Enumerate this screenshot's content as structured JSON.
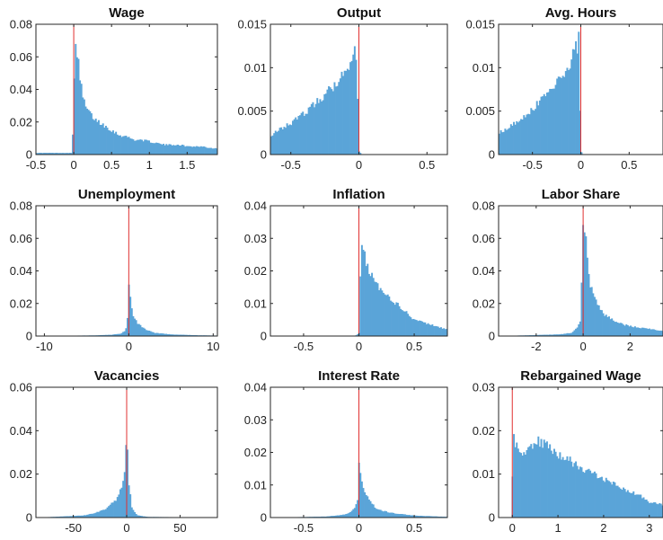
{
  "chart_data": [
    {
      "type": "histogram",
      "title": "Wage",
      "xlim": [
        -0.5,
        1.9
      ],
      "ylim": [
        0,
        0.08
      ],
      "xticks": [
        -0.5,
        0,
        0.5,
        1,
        1.5
      ],
      "xtick_labels": [
        "-0.5",
        "0",
        "0.5",
        "1",
        "1.5"
      ],
      "yticks": [
        0,
        0.02,
        0.04,
        0.06,
        0.08
      ],
      "ytick_labels": [
        "0",
        "0.02",
        "0.04",
        "0.06",
        "0.08"
      ],
      "bar_color": "#5aa4d8",
      "ref_line_color": "#e03030",
      "ref_line_x": 0,
      "x": [
        -0.02,
        0.02,
        0.05,
        0.08,
        0.12,
        0.16,
        0.2,
        0.25,
        0.3,
        0.4,
        0.5,
        0.6,
        0.7,
        0.8,
        0.9,
        1.0,
        1.1,
        1.2,
        1.3,
        1.4,
        1.5,
        1.6,
        1.7,
        1.8,
        1.9
      ],
      "y": [
        0.001,
        0.074,
        0.061,
        0.046,
        0.035,
        0.029,
        0.026,
        0.023,
        0.021,
        0.018,
        0.015,
        0.012,
        0.011,
        0.009,
        0.009,
        0.008,
        0.007,
        0.006,
        0.006,
        0.006,
        0.005,
        0.005,
        0.005,
        0.004,
        0.004
      ]
    },
    {
      "type": "histogram",
      "title": "Output",
      "xlim": [
        -0.65,
        0.65
      ],
      "ylim": [
        0,
        0.015
      ],
      "xticks": [
        -0.5,
        0,
        0.5
      ],
      "xtick_labels": [
        "-0.5",
        "0",
        "0.5"
      ],
      "yticks": [
        0,
        0.005,
        0.01,
        0.015
      ],
      "ytick_labels": [
        "0",
        "0.005",
        "0.01",
        "0.015"
      ],
      "bar_color": "#5aa4d8",
      "ref_line_color": "#e03030",
      "ref_line_x": 0,
      "x": [
        -0.65,
        -0.6,
        -0.5,
        -0.4,
        -0.3,
        -0.2,
        -0.15,
        -0.1,
        -0.05,
        -0.02,
        0.0,
        0.02
      ],
      "y": [
        0.0022,
        0.0027,
        0.0036,
        0.0048,
        0.0062,
        0.0077,
        0.0087,
        0.0097,
        0.0112,
        0.0118,
        0.0004,
        0.0
      ]
    },
    {
      "type": "histogram",
      "title": "Avg. Hours",
      "xlim": [
        -0.85,
        0.85
      ],
      "ylim": [
        0,
        0.015
      ],
      "xticks": [
        -0.5,
        0,
        0.5
      ],
      "xtick_labels": [
        "-0.5",
        "0",
        "0.5"
      ],
      "yticks": [
        0,
        0.005,
        0.01,
        0.015
      ],
      "ytick_labels": [
        "0",
        "0.005",
        "0.01",
        "0.015"
      ],
      "bar_color": "#5aa4d8",
      "ref_line_color": "#e03030",
      "ref_line_x": 0,
      "x": [
        -0.85,
        -0.8,
        -0.7,
        -0.6,
        -0.5,
        -0.4,
        -0.3,
        -0.2,
        -0.1,
        -0.05,
        -0.02,
        0.0,
        0.02
      ],
      "y": [
        0.0025,
        0.0028,
        0.0035,
        0.0043,
        0.0053,
        0.0064,
        0.0078,
        0.0092,
        0.0108,
        0.0122,
        0.0132,
        0.0004,
        0.0
      ]
    },
    {
      "type": "histogram",
      "title": "Unemployment",
      "xlim": [
        -11,
        10.5
      ],
      "ylim": [
        0,
        0.08
      ],
      "xticks": [
        -10,
        0,
        10
      ],
      "xtick_labels": [
        "-10",
        "0",
        "10"
      ],
      "yticks": [
        0,
        0.02,
        0.04,
        0.06,
        0.08
      ],
      "ytick_labels": [
        "0",
        "0.02",
        "0.04",
        "0.06",
        "0.08"
      ],
      "bar_color": "#5aa4d8",
      "ref_line_color": "#e03030",
      "ref_line_x": 0,
      "x": [
        -11,
        -4,
        -2,
        -1,
        -0.5,
        -0.2,
        0,
        0.2,
        0.5,
        1,
        2,
        3,
        5,
        8,
        10.5
      ],
      "y": [
        0.0,
        0.0004,
        0.0008,
        0.0015,
        0.003,
        0.006,
        0.034,
        0.022,
        0.013,
        0.008,
        0.004,
        0.002,
        0.001,
        0.0005,
        0.0003
      ]
    },
    {
      "type": "histogram",
      "title": "Inflation",
      "xlim": [
        -0.8,
        0.8
      ],
      "ylim": [
        0,
        0.04
      ],
      "xticks": [
        -0.5,
        0,
        0.5
      ],
      "xtick_labels": [
        "-0.5",
        "0",
        "0.5"
      ],
      "yticks": [
        0,
        0.01,
        0.02,
        0.03,
        0.04
      ],
      "ytick_labels": [
        "0",
        "0.01",
        "0.02",
        "0.03",
        "0.04"
      ],
      "bar_color": "#5aa4d8",
      "ref_line_color": "#e03030",
      "ref_line_x": 0,
      "x": [
        -0.8,
        -0.05,
        -0.02,
        0.0,
        0.02,
        0.05,
        0.1,
        0.15,
        0.2,
        0.3,
        0.4,
        0.5,
        0.6,
        0.7,
        0.8
      ],
      "y": [
        0.0,
        0.0,
        0.0003,
        0.001,
        0.029,
        0.025,
        0.019,
        0.016,
        0.014,
        0.011,
        0.008,
        0.005,
        0.004,
        0.003,
        0.002
      ]
    },
    {
      "type": "histogram",
      "title": "Labor Share",
      "xlim": [
        -3.6,
        3.4
      ],
      "ylim": [
        0,
        0.08
      ],
      "xticks": [
        -2,
        0,
        2
      ],
      "xtick_labels": [
        "-2",
        "0",
        "2"
      ],
      "yticks": [
        0,
        0.02,
        0.04,
        0.06,
        0.08
      ],
      "ytick_labels": [
        "0",
        "0.02",
        "0.04",
        "0.06",
        "0.08"
      ],
      "bar_color": "#5aa4d8",
      "ref_line_color": "#e03030",
      "ref_line_x": 0,
      "x": [
        -3.6,
        -1.0,
        -0.5,
        -0.25,
        -0.1,
        0.0,
        0.1,
        0.25,
        0.5,
        0.8,
        1.0,
        1.5,
        2.0,
        2.5,
        3.0,
        3.4
      ],
      "y": [
        0.0,
        0.001,
        0.002,
        0.005,
        0.01,
        0.078,
        0.06,
        0.035,
        0.022,
        0.015,
        0.012,
        0.008,
        0.006,
        0.005,
        0.004,
        0.003
      ]
    },
    {
      "type": "histogram",
      "title": "Vacancies",
      "xlim": [
        -85,
        85
      ],
      "ylim": [
        0,
        0.06
      ],
      "xticks": [
        -50,
        0,
        50
      ],
      "xtick_labels": [
        "-50",
        "0",
        "50"
      ],
      "yticks": [
        0,
        0.02,
        0.04,
        0.06
      ],
      "ytick_labels": [
        "0",
        "0.02",
        "0.04",
        "0.06"
      ],
      "bar_color": "#5aa4d8",
      "ref_line_color": "#e03030",
      "ref_line_x": 0,
      "x": [
        -85,
        -60,
        -40,
        -30,
        -20,
        -10,
        -5,
        -2,
        0,
        2,
        5,
        10,
        20,
        85
      ],
      "y": [
        0.0,
        0.0005,
        0.001,
        0.002,
        0.004,
        0.008,
        0.014,
        0.022,
        0.038,
        0.015,
        0.004,
        0.001,
        0.0003,
        0.0
      ]
    },
    {
      "type": "histogram",
      "title": "Interest Rate",
      "xlim": [
        -0.8,
        0.8
      ],
      "ylim": [
        0,
        0.04
      ],
      "xticks": [
        -0.5,
        0,
        0.5
      ],
      "xtick_labels": [
        "-0.5",
        "0",
        "0.5"
      ],
      "yticks": [
        0,
        0.01,
        0.02,
        0.03,
        0.04
      ],
      "ytick_labels": [
        "0",
        "0.01",
        "0.02",
        "0.03",
        "0.04"
      ],
      "bar_color": "#5aa4d8",
      "ref_line_color": "#e03030",
      "ref_line_x": 0,
      "x": [
        -0.8,
        -0.3,
        -0.15,
        -0.08,
        -0.04,
        -0.01,
        0.0,
        0.02,
        0.05,
        0.1,
        0.15,
        0.2,
        0.3,
        0.5,
        0.8
      ],
      "y": [
        0.0,
        0.0003,
        0.0008,
        0.0015,
        0.003,
        0.006,
        0.016,
        0.012,
        0.008,
        0.005,
        0.003,
        0.0022,
        0.0014,
        0.0006,
        0.0002
      ]
    },
    {
      "type": "histogram",
      "title": "Rebargained Wage",
      "xlim": [
        -0.3,
        3.3
      ],
      "ylim": [
        0,
        0.03
      ],
      "xticks": [
        0,
        1,
        2,
        3
      ],
      "xtick_labels": [
        "0",
        "1",
        "2",
        "3"
      ],
      "yticks": [
        0,
        0.01,
        0.02,
        0.03
      ],
      "ytick_labels": [
        "0",
        "0.01",
        "0.02",
        "0.03"
      ],
      "bar_color": "#5aa4d8",
      "ref_line_color": "#e03030",
      "ref_line_x": 0,
      "x": [
        -0.3,
        -0.02,
        0.02,
        0.1,
        0.2,
        0.3,
        0.4,
        0.5,
        0.6,
        0.8,
        1.0,
        1.2,
        1.4,
        1.6,
        1.8,
        2.0,
        2.2,
        2.4,
        2.6,
        2.8,
        3.0,
        3.3
      ],
      "y": [
        0.0,
        0.0,
        0.0185,
        0.0165,
        0.0155,
        0.0145,
        0.0158,
        0.0172,
        0.0175,
        0.016,
        0.0148,
        0.0135,
        0.0122,
        0.011,
        0.01,
        0.009,
        0.0078,
        0.0068,
        0.0058,
        0.005,
        0.0035,
        0.003
      ]
    }
  ]
}
